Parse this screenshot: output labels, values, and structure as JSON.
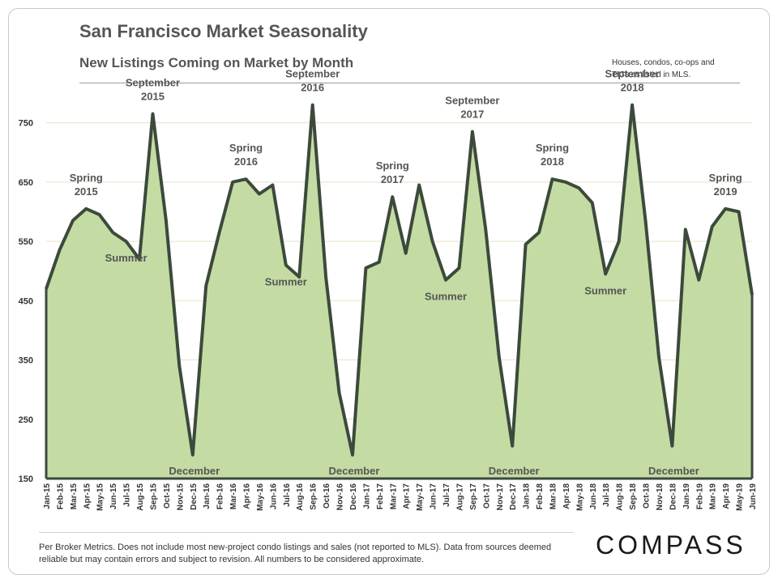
{
  "header": {
    "title": "San Francisco Market Seasonality",
    "subtitle": "New Listings Coming on Market by Month",
    "note": "Houses, condos, co-ops and TICs as listed in MLS."
  },
  "footer": {
    "disclaimer": "Per Broker Metrics. Does not include most new-project condo listings and sales (not reported to MLS). Data from sources deemed reliable but may contain errors and subject to revision. All numbers to be considered approximate.",
    "logo": "COMPASS"
  },
  "colors": {
    "fill": "#c4dca4",
    "line": "#3c4a3c",
    "grid": "#e6e2c8",
    "text": "#555555"
  },
  "chart_data": {
    "type": "area",
    "title": "San Francisco Market Seasonality",
    "subtitle": "New Listings Coming on Market by Month",
    "ylim": [
      150,
      800
    ],
    "yticks": [
      150,
      250,
      350,
      450,
      550,
      650,
      750
    ],
    "grid": true,
    "categories": [
      "Jan-15",
      "Feb-15",
      "Mar-15",
      "Apr-15",
      "May-15",
      "Jun-15",
      "Jul-15",
      "Aug-15",
      "Sep-15",
      "Oct-15",
      "Nov-15",
      "Dec-15",
      "Jan-16",
      "Feb-16",
      "Mar-16",
      "Apr-16",
      "May-16",
      "Jun-16",
      "Jul-16",
      "Aug-16",
      "Sep-16",
      "Oct-16",
      "Nov-16",
      "Dec-16",
      "Jan-17",
      "Feb-17",
      "Mar-17",
      "Apr-17",
      "May-17",
      "Jun-17",
      "Jul-17",
      "Aug-17",
      "Sep-17",
      "Oct-17",
      "Nov-17",
      "Dec-17",
      "Jan-18",
      "Feb-18",
      "Mar-18",
      "Apr-18",
      "May-18",
      "Jun-18",
      "Jul-18",
      "Aug-18",
      "Sep-18",
      "Oct-18",
      "Nov-18",
      "Dec-18",
      "Jan-19",
      "Feb-19",
      "Mar-19",
      "Apr-19",
      "May-19",
      "Jun-19"
    ],
    "values": [
      470,
      535,
      585,
      605,
      595,
      565,
      550,
      520,
      765,
      585,
      340,
      190,
      475,
      565,
      650,
      655,
      630,
      645,
      510,
      490,
      780,
      490,
      295,
      190,
      505,
      515,
      625,
      530,
      645,
      550,
      485,
      505,
      735,
      570,
      355,
      205,
      545,
      565,
      655,
      650,
      640,
      615,
      495,
      550,
      780,
      585,
      355,
      205,
      570,
      485,
      575,
      605,
      600,
      460
    ],
    "annotations": [
      {
        "text": "Spring 2015",
        "index": 3,
        "value": 605,
        "placement": "above"
      },
      {
        "text": "Summer",
        "index": 6,
        "value": 550,
        "placement": "below"
      },
      {
        "text": "September 2015",
        "index": 8,
        "value": 765,
        "placement": "above"
      },
      {
        "text": "December",
        "index": 11,
        "value": 190,
        "placement": "right"
      },
      {
        "text": "Spring 2016",
        "index": 15,
        "value": 655,
        "placement": "above"
      },
      {
        "text": "Summer",
        "index": 18,
        "value": 510,
        "placement": "below"
      },
      {
        "text": "September 2016",
        "index": 20,
        "value": 780,
        "placement": "above"
      },
      {
        "text": "December",
        "index": 23,
        "value": 190,
        "placement": "right"
      },
      {
        "text": "Spring 2017",
        "index": 26,
        "value": 625,
        "placement": "above"
      },
      {
        "text": "Summer",
        "index": 30,
        "value": 485,
        "placement": "below"
      },
      {
        "text": "September 2017",
        "index": 32,
        "value": 735,
        "placement": "above"
      },
      {
        "text": "December",
        "index": 35,
        "value": 205,
        "placement": "right"
      },
      {
        "text": "Spring 2018",
        "index": 38,
        "value": 655,
        "placement": "above"
      },
      {
        "text": "Summer",
        "index": 42,
        "value": 495,
        "placement": "below"
      },
      {
        "text": "September 2018",
        "index": 44,
        "value": 780,
        "placement": "above"
      },
      {
        "text": "December",
        "index": 47,
        "value": 205,
        "placement": "right"
      },
      {
        "text": "Spring 2019",
        "index": 51,
        "value": 605,
        "placement": "above"
      }
    ]
  }
}
